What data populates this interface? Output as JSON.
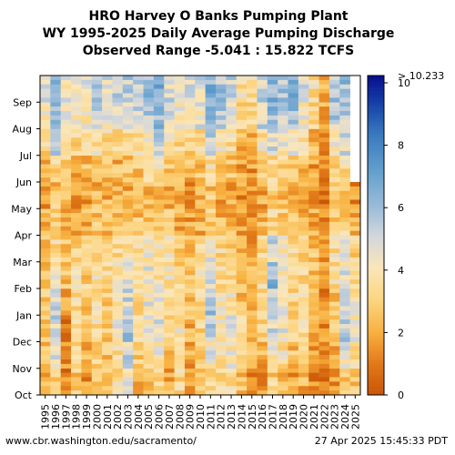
{
  "chart_data": {
    "type": "heatmap",
    "title_lines": [
      "HRO Harvey O Banks Pumping Plant",
      "WY 1995-2025 Daily Average Pumping Discharge",
      "Observed Range -5.041 : 15.822 TCFS"
    ],
    "x_categories": [
      "1995",
      "1996",
      "1997",
      "1998",
      "1999",
      "2000",
      "2001",
      "2002",
      "2003",
      "2004",
      "2005",
      "2006",
      "2007",
      "2008",
      "2009",
      "2010",
      "2011",
      "2012",
      "2013",
      "2014",
      "2015",
      "2016",
      "2017",
      "2018",
      "2019",
      "2020",
      "2021",
      "2022",
      "2023",
      "2024",
      "2025"
    ],
    "y_categories": [
      "Oct",
      "Nov",
      "Dec",
      "Jan",
      "Feb",
      "Mar",
      "Apr",
      "May",
      "Jun",
      "Jul",
      "Aug",
      "Sep"
    ],
    "colorbar": {
      "min": 0,
      "max": 10.233,
      "ticks": [
        0,
        2,
        4,
        6,
        8,
        10
      ],
      "max_label": "> 10.233"
    },
    "monthly_values": [
      [
        1.8,
        3.2,
        1.0,
        2.8,
        1.5,
        3.0,
        2.3,
        3.5,
        4.5,
        1.8,
        2.5,
        3.4,
        2.0,
        3.3,
        1.7,
        2.5,
        3.5,
        3.3,
        3.4,
        2.7,
        1.4,
        1.5,
        3.0,
        2.6,
        1.8,
        2.2,
        1.3,
        1.2,
        1.6,
        3.0,
        2.6
      ],
      [
        2.4,
        4.5,
        1.4,
        3.0,
        2.0,
        3.2,
        2.5,
        3.6,
        5.0,
        2.8,
        3.5,
        4.2,
        2.8,
        3.5,
        2.0,
        3.0,
        4.5,
        3.8,
        4.0,
        3.0,
        2.0,
        2.2,
        4.0,
        3.8,
        2.5,
        3.0,
        2.0,
        1.4,
        2.3,
        4.5,
        3.6
      ],
      [
        2.6,
        5.2,
        1.2,
        3.3,
        2.4,
        3.6,
        2.8,
        4.3,
        5.6,
        3.2,
        4.2,
        4.7,
        3.4,
        3.8,
        2.2,
        3.2,
        5.3,
        4.2,
        4.3,
        3.3,
        2.2,
        2.8,
        4.8,
        4.6,
        3.0,
        3.4,
        2.3,
        1.3,
        2.5,
        5.3,
        4.1
      ],
      [
        2.8,
        4.8,
        2.0,
        3.5,
        2.8,
        3.8,
        3.0,
        4.2,
        5.0,
        3.4,
        4.5,
        4.2,
        3.8,
        3.2,
        2.5,
        3.4,
        5.8,
        3.9,
        3.8,
        2.6,
        2.0,
        3.3,
        5.0,
        4.4,
        3.3,
        3.6,
        2.4,
        1.4,
        2.6,
        4.9,
        3.9
      ],
      [
        2.2,
        4.0,
        2.5,
        3.6,
        3.0,
        4.0,
        3.2,
        3.8,
        4.3,
        3.6,
        4.6,
        3.9,
        3.9,
        3.1,
        2.6,
        3.5,
        5.2,
        3.7,
        3.4,
        2.2,
        2.1,
        3.6,
        6.2,
        4.0,
        3.5,
        3.4,
        2.6,
        1.6,
        3.5,
        4.6,
        3.5
      ],
      [
        2.5,
        3.4,
        2.4,
        3.0,
        2.7,
        3.6,
        3.0,
        3.4,
        3.5,
        3.4,
        4.1,
        3.5,
        3.6,
        3.0,
        2.6,
        3.1,
        4.4,
        3.4,
        3.0,
        2.0,
        2.0,
        3.3,
        5.0,
        3.7,
        3.4,
        3.0,
        2.4,
        1.5,
        3.6,
        4.1,
        3.0
      ],
      [
        2.0,
        2.8,
        1.9,
        1.9,
        2.0,
        2.6,
        2.4,
        2.5,
        2.3,
        2.6,
        2.9,
        2.9,
        2.5,
        2.2,
        1.9,
        2.1,
        3.1,
        2.3,
        2.1,
        1.7,
        1.6,
        2.3,
        3.3,
        2.8,
        2.7,
        2.1,
        1.8,
        1.2,
        2.7,
        3.1,
        2.2
      ],
      [
        1.6,
        2.6,
        2.6,
        1.6,
        1.8,
        2.2,
        2.2,
        2.0,
        1.9,
        2.1,
        2.4,
        2.6,
        2.2,
        1.9,
        1.7,
        1.9,
        2.7,
        2.1,
        1.8,
        1.5,
        1.4,
        2.0,
        2.8,
        2.4,
        2.3,
        1.9,
        1.5,
        1.1,
        2.4,
        2.8,
        1.5
      ],
      [
        2.3,
        3.4,
        3.2,
        2.2,
        2.3,
        2.8,
        2.6,
        2.3,
        2.5,
        2.8,
        3.3,
        3.6,
        2.6,
        2.4,
        2.3,
        2.5,
        3.6,
        2.8,
        2.6,
        1.8,
        1.6,
        2.8,
        3.5,
        3.0,
        3.2,
        2.4,
        1.8,
        1.3,
        3.2,
        3.6,
        null
      ],
      [
        3.3,
        5.2,
        3.6,
        3.3,
        3.2,
        3.8,
        3.5,
        3.3,
        3.6,
        3.8,
        4.6,
        5.2,
        3.6,
        3.3,
        3.1,
        3.4,
        5.2,
        4.0,
        3.6,
        2.4,
        2.3,
        3.8,
        5.0,
        4.2,
        4.6,
        3.4,
        2.4,
        1.6,
        4.4,
        4.8,
        null
      ],
      [
        4.4,
        6.3,
        4.2,
        4.2,
        4.2,
        5.2,
        4.6,
        4.8,
        5.1,
        5.2,
        5.9,
        6.3,
        4.6,
        4.1,
        4.3,
        4.6,
        6.3,
        5.4,
        4.8,
        3.3,
        3.1,
        5.0,
        6.0,
        5.4,
        5.9,
        4.3,
        3.2,
        2.0,
        5.4,
        5.6,
        null
      ],
      [
        4.8,
        6.5,
        4.4,
        4.5,
        4.6,
        5.6,
        5.0,
        5.2,
        5.5,
        5.6,
        6.2,
        6.5,
        4.9,
        4.3,
        4.6,
        4.9,
        6.5,
        5.8,
        5.1,
        3.6,
        3.4,
        5.3,
        6.3,
        5.8,
        6.2,
        4.6,
        3.5,
        2.2,
        5.7,
        5.9,
        null
      ]
    ]
  },
  "footer": {
    "url": "www.cbr.washington.edu/sacramento/",
    "timestamp": "27 Apr 2025 15:45:33 PDT"
  }
}
